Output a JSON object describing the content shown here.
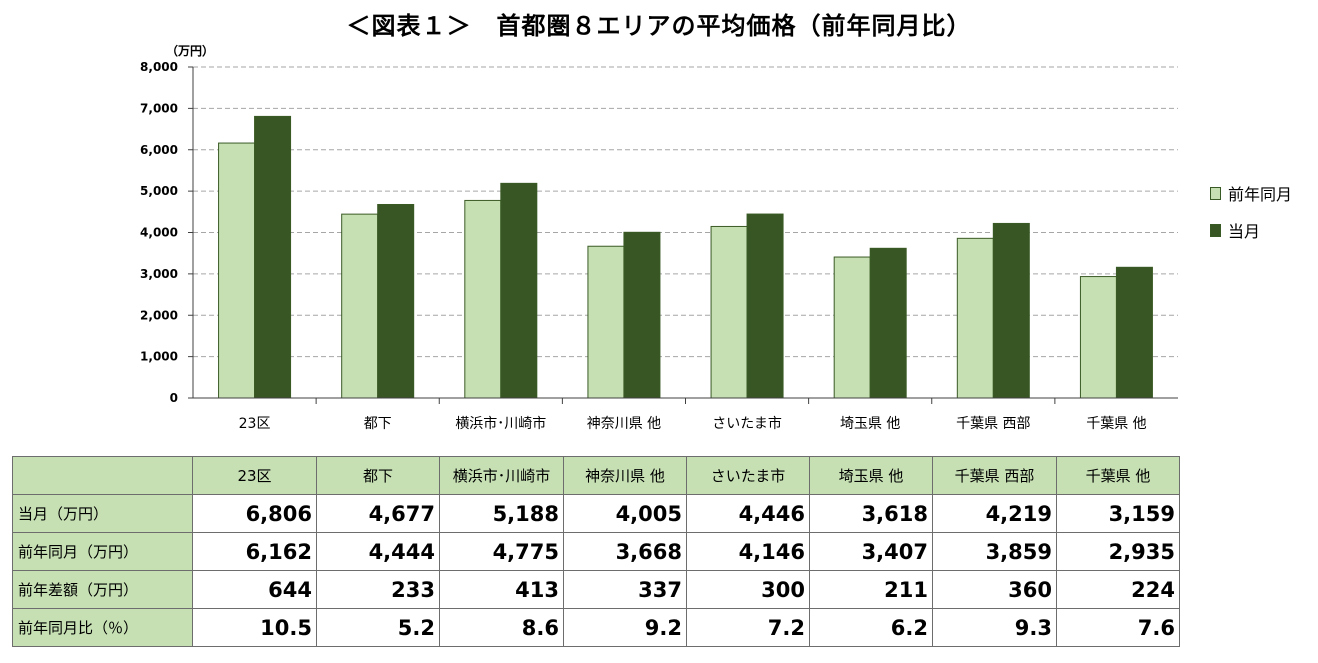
{
  "title": "＜図表１＞　首都圏８エリアの平均価格（前年同月比）",
  "unit_label": "（万円）",
  "colors": {
    "prev": "#c6e0b4",
    "curr": "#375623",
    "grid": "#a6a6a6",
    "table_header": "#c6e0b4"
  },
  "legend": {
    "prev": "前年同月",
    "curr": "当月"
  },
  "chart_data": {
    "type": "bar",
    "categories": [
      "23区",
      "都下",
      "横浜市･川崎市",
      "神奈川県 他",
      "さいたま市",
      "埼玉県 他",
      "千葉県 西部",
      "千葉県 他"
    ],
    "series": [
      {
        "name": "前年同月",
        "values": [
          6162,
          4444,
          4775,
          3668,
          4146,
          3407,
          3859,
          2935
        ]
      },
      {
        "name": "当月",
        "values": [
          6806,
          4677,
          5188,
          4005,
          4446,
          3618,
          4219,
          3159
        ]
      }
    ],
    "ylim": [
      0,
      8000
    ],
    "yticks": [
      "0",
      "1,000",
      "2,000",
      "3,000",
      "4,000",
      "5,000",
      "6,000",
      "7,000",
      "8,000"
    ],
    "grid": "dashed",
    "legend_position": "right"
  },
  "table": {
    "headers": [
      "",
      "23区",
      "都下",
      "横浜市･川崎市",
      "神奈川県 他",
      "さいたま市",
      "埼玉県 他",
      "千葉県 西部",
      "千葉県 他"
    ],
    "rows": [
      {
        "label": "当月（万円）",
        "cells": [
          "6,806",
          "4,677",
          "5,188",
          "4,005",
          "4,446",
          "3,618",
          "4,219",
          "3,159"
        ]
      },
      {
        "label": "前年同月（万円）",
        "cells": [
          "6,162",
          "4,444",
          "4,775",
          "3,668",
          "4,146",
          "3,407",
          "3,859",
          "2,935"
        ]
      },
      {
        "label": "前年差額（万円）",
        "cells": [
          "644",
          "233",
          "413",
          "337",
          "300",
          "211",
          "360",
          "224"
        ]
      },
      {
        "label": "前年同月比（％）",
        "cells": [
          "10.5",
          "5.2",
          "8.6",
          "9.2",
          "7.2",
          "6.2",
          "9.3",
          "7.6"
        ]
      }
    ]
  }
}
